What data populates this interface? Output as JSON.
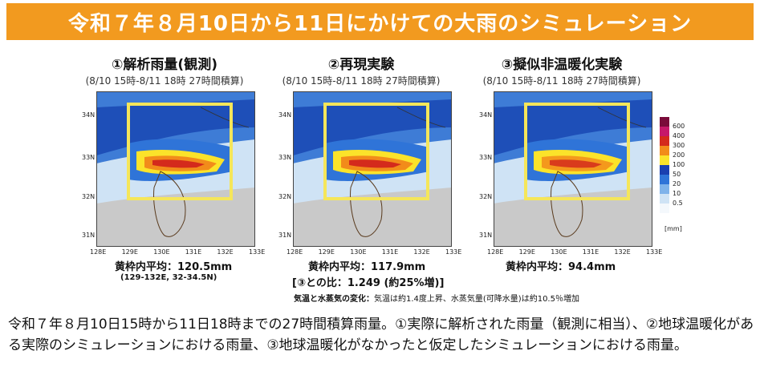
{
  "banner": {
    "title": "令和７年８月10日から11日にかけての大雨のシミュレーション"
  },
  "panels": [
    {
      "title": "①解析雨量(観測)",
      "subtitle": "(8/10 15時-8/11 18時 27時間積算)",
      "average": "黄枠内平均：120.5mm",
      "note": "(129-132E, 32-34.5N)"
    },
    {
      "title": "②再現実験",
      "subtitle": "(8/10 15時-8/11 18時 27時間積算)",
      "average": "黄枠内平均：117.9mm",
      "note": ""
    },
    {
      "title": "③擬似非温暖化実験",
      "subtitle": "(8/10 15時-8/11 18時 27時間積算)",
      "average": "黄枠内平均：94.4mm",
      "note": ""
    }
  ],
  "axes": {
    "lat": [
      "34N",
      "33N",
      "32N",
      "31N"
    ],
    "lon": [
      "128E",
      "129E",
      "130E",
      "131E",
      "132E",
      "133E"
    ]
  },
  "colorbar": {
    "ticks": [
      "600",
      "400",
      "300",
      "200",
      "100",
      "50",
      "20",
      "10",
      "0.5"
    ],
    "unit": "[mm]",
    "colors": [
      "#7a0b3a",
      "#c6186a",
      "#d42a1c",
      "#f28c1a",
      "#fbe32a",
      "#1a3fb0",
      "#2f74d8",
      "#7fb3ea",
      "#cfe3f5",
      "#f4f8fc"
    ]
  },
  "comparison": {
    "text": "[③との比：1.249 (約25%増)]"
  },
  "change": {
    "label": "気温と水蒸気の変化：",
    "text": "気温は約1.4度上昇、水蒸気量(可降水量)は約10.5％増加"
  },
  "caption": {
    "text": "令和７年８月10日15時から11日18時までの27時間積算雨量。①実際に解析された雨量（観測に相当）、②地球温暖化がある実際のシミュレーションにおける雨量、③地球温暖化がなかったと仮定したシミュレーションにおける雨量。"
  }
}
